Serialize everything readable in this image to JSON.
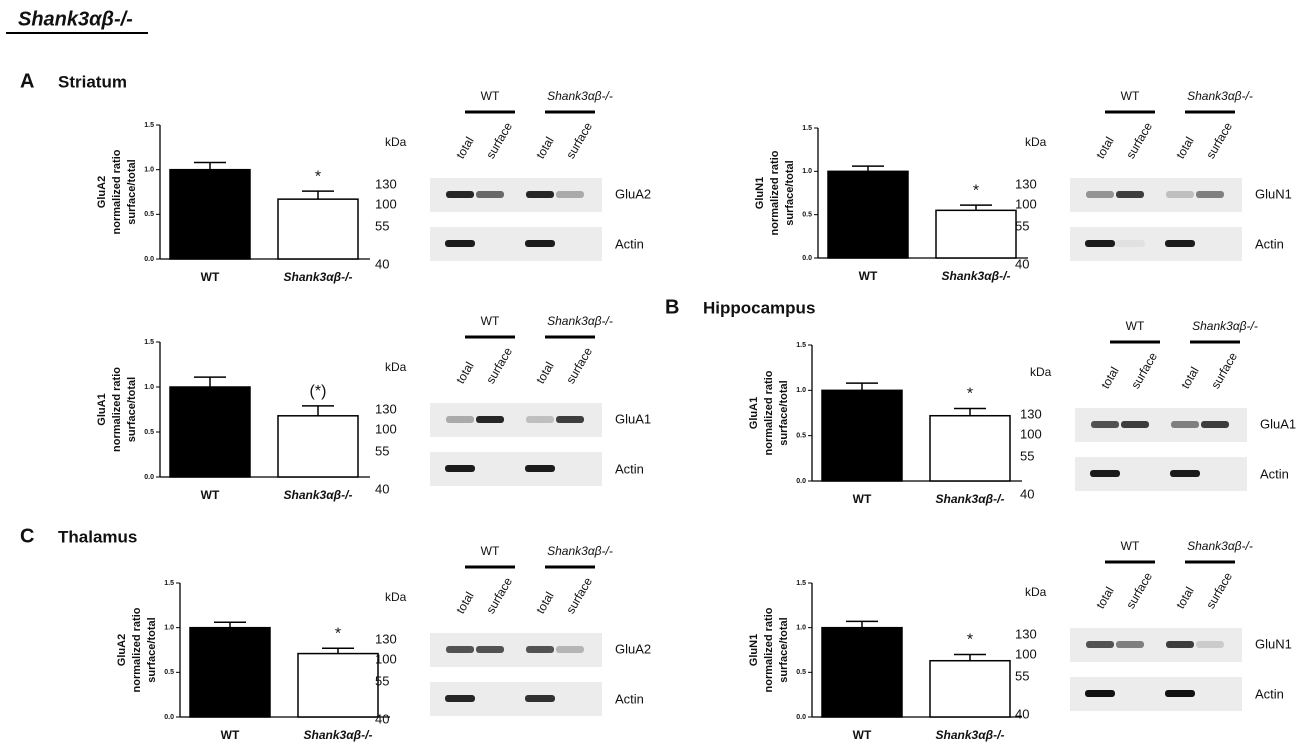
{
  "title": "Shank3αβ-/-",
  "sections": [
    {
      "letter": "A",
      "region": "Striatum"
    },
    {
      "letter": "B",
      "region": "Hippocampus"
    },
    {
      "letter": "C",
      "region": "Thalamus"
    }
  ],
  "chart_data": [
    {
      "type": "bar",
      "ylabel": [
        "GluA2",
        "normalized ratio",
        "surface/total"
      ],
      "categories": [
        "WT",
        "Shank3αβ-/-"
      ],
      "values": [
        1,
        0.67
      ],
      "errors": [
        0.08,
        0.09
      ],
      "annotation": "*",
      "ylim": [
        0,
        1.5
      ],
      "yticks": [
        {
          "value": 0,
          "label": "0.0"
        },
        {
          "value": 0.5,
          "label": "0.5"
        },
        {
          "value": 1,
          "label": "1.0"
        },
        {
          "value": 1.5,
          "label": "1.5"
        }
      ],
      "colors": [
        "#000000",
        "#ffffff"
      ]
    },
    {
      "type": "bar",
      "ylabel": [
        "GluN1",
        "normalized ratio",
        "surface/total"
      ],
      "categories": [
        "WT",
        "Shank3αβ-/-"
      ],
      "values": [
        1,
        0.55
      ],
      "errors": [
        0.06,
        0.06
      ],
      "annotation": "*",
      "ylim": [
        0,
        1.5
      ],
      "yticks": [
        {
          "value": 0,
          "label": "0.0"
        },
        {
          "value": 0.5,
          "label": "0.5"
        },
        {
          "value": 1,
          "label": "1.0"
        },
        {
          "value": 1.5,
          "label": "1.5"
        }
      ],
      "colors": [
        "#000000",
        "#ffffff"
      ]
    },
    {
      "type": "bar",
      "ylabel": [
        "GluA1",
        "normalized ratio",
        "surface/total"
      ],
      "categories": [
        "WT",
        "Shank3αβ-/-"
      ],
      "values": [
        1,
        0.68
      ],
      "errors": [
        0.11,
        0.11
      ],
      "annotation": "(*)",
      "ylim": [
        0,
        1.5
      ],
      "yticks": [
        {
          "value": 0,
          "label": "0.0"
        },
        {
          "value": 0.5,
          "label": "0.5"
        },
        {
          "value": 1,
          "label": "1.0"
        },
        {
          "value": 1.5,
          "label": "1.5"
        }
      ],
      "colors": [
        "#000000",
        "#ffffff"
      ]
    },
    {
      "type": "bar",
      "ylabel": [
        "GluA1",
        "normalized ratio",
        "surface/total"
      ],
      "categories": [
        "WT",
        "Shank3αβ-/-"
      ],
      "values": [
        1,
        0.72
      ],
      "errors": [
        0.08,
        0.08
      ],
      "annotation": "*",
      "ylim": [
        0,
        1.5
      ],
      "yticks": [
        {
          "value": 0,
          "label": "0.0"
        },
        {
          "value": 0.5,
          "label": "0.5"
        },
        {
          "value": 1,
          "label": "1.0"
        },
        {
          "value": 1.5,
          "label": "1.5"
        }
      ],
      "colors": [
        "#000000",
        "#ffffff"
      ]
    },
    {
      "type": "bar",
      "ylabel": [
        "GluA2",
        "normalized ratio",
        "surface/total"
      ],
      "categories": [
        "WT",
        "Shank3αβ-/-"
      ],
      "values": [
        1,
        0.71
      ],
      "errors": [
        0.06,
        0.06
      ],
      "annotation": "*",
      "ylim": [
        0,
        1.5
      ],
      "yticks": [
        {
          "value": 0,
          "label": "0.0"
        },
        {
          "value": 0.5,
          "label": "0.5"
        },
        {
          "value": 1,
          "label": "1.0"
        },
        {
          "value": 1.5,
          "label": "1.5"
        }
      ],
      "colors": [
        "#000000",
        "#ffffff"
      ]
    },
    {
      "type": "bar",
      "ylabel": [
        "GluN1",
        "normalized ratio",
        "surface/total"
      ],
      "categories": [
        "WT",
        "Shank3αβ-/-"
      ],
      "values": [
        1,
        0.63
      ],
      "errors": [
        0.07,
        0.07
      ],
      "annotation": "*",
      "ylim": [
        0,
        1.5
      ],
      "yticks": [
        {
          "value": 0,
          "label": "0.0"
        },
        {
          "value": 0.5,
          "label": "0.5"
        },
        {
          "value": 1,
          "label": "1.0"
        },
        {
          "value": 1.5,
          "label": "1.5"
        }
      ],
      "colors": [
        "#000000",
        "#ffffff"
      ]
    }
  ],
  "blots": [
    {
      "groups": [
        "WT",
        "Shank3αβ-/-"
      ],
      "lanes": [
        "total",
        "surface",
        "total",
        "surface"
      ],
      "unit": "kDa",
      "markers": [
        "130",
        "100",
        "55",
        "40"
      ],
      "bands": [
        "GluA2",
        "Actin"
      ]
    },
    {
      "groups": [
        "WT",
        "Shank3αβ-/-"
      ],
      "lanes": [
        "total",
        "surface",
        "total",
        "surface"
      ],
      "unit": "kDa",
      "markers": [
        "130",
        "100",
        "55",
        "40"
      ],
      "bands": [
        "GluN1",
        "Actin"
      ]
    },
    {
      "groups": [
        "WT",
        "Shank3αβ-/-"
      ],
      "lanes": [
        "total",
        "surface",
        "total",
        "surface"
      ],
      "unit": "kDa",
      "markers": [
        "130",
        "100",
        "55",
        "40"
      ],
      "bands": [
        "GluA1",
        "Actin"
      ]
    },
    {
      "groups": [
        "WT",
        "Shank3αβ-/-"
      ],
      "lanes": [
        "total",
        "surface",
        "total",
        "surface"
      ],
      "unit": "kDa",
      "markers": [
        "130",
        "100",
        "55",
        "40"
      ],
      "bands": [
        "GluA1",
        "Actin"
      ]
    },
    {
      "groups": [
        "WT",
        "Shank3αβ-/-"
      ],
      "lanes": [
        "total",
        "surface",
        "total",
        "surface"
      ],
      "unit": "kDa",
      "markers": [
        "130",
        "100",
        "55",
        "40"
      ],
      "bands": [
        "GluA2",
        "Actin"
      ]
    },
    {
      "groups": [
        "WT",
        "Shank3αβ-/-"
      ],
      "lanes": [
        "total",
        "surface",
        "total",
        "surface"
      ],
      "unit": "kDa",
      "markers": [
        "130",
        "100",
        "55",
        "40"
      ],
      "bands": [
        "GluN1",
        "Actin"
      ]
    }
  ]
}
